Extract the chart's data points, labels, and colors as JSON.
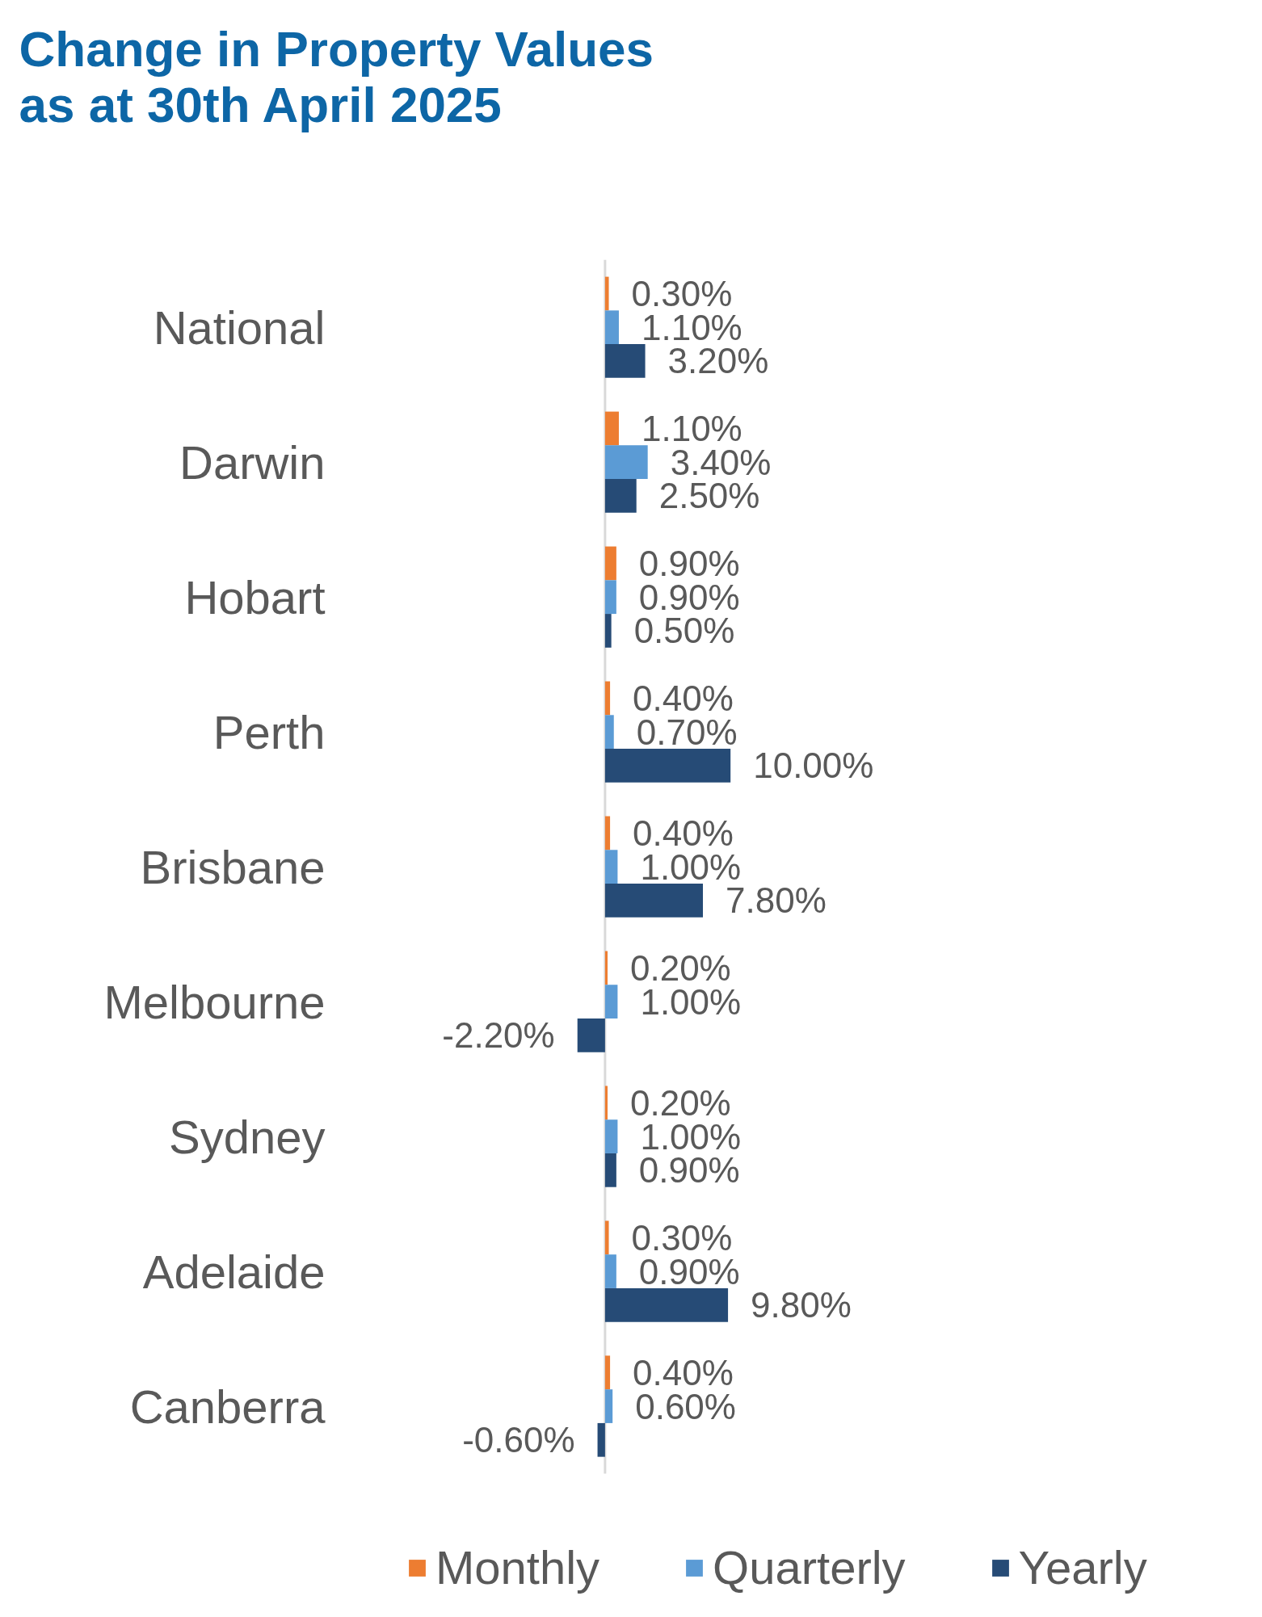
{
  "chart_data": {
    "type": "bar",
    "orientation": "horizontal",
    "title": "Change in Property Values\nas at 30th April 2025",
    "categories": [
      "National",
      "Darwin",
      "Hobart",
      "Perth",
      "Brisbane",
      "Melbourne",
      "Sydney",
      "Adelaide",
      "Canberra"
    ],
    "series": [
      {
        "name": "Monthly",
        "color": "#ed7d31",
        "values": [
          0.3,
          1.1,
          0.9,
          0.4,
          0.4,
          0.2,
          0.2,
          0.3,
          0.4
        ],
        "value_labels": [
          "0.30%",
          "1.10%",
          "0.90%",
          "0.40%",
          "0.40%",
          "0.20%",
          "0.20%",
          "0.30%",
          "0.40%"
        ]
      },
      {
        "name": "Quarterly",
        "color": "#5b9bd5",
        "values": [
          1.1,
          3.4,
          0.9,
          0.7,
          1.0,
          1.0,
          1.0,
          0.9,
          0.6
        ],
        "value_labels": [
          "1.10%",
          "3.40%",
          "0.90%",
          "0.70%",
          "1.00%",
          "1.00%",
          "1.00%",
          "0.90%",
          "0.60%"
        ]
      },
      {
        "name": "Yearly",
        "color": "#264b76",
        "values": [
          3.2,
          2.5,
          0.5,
          10.0,
          7.8,
          -2.2,
          0.9,
          9.8,
          -0.6
        ],
        "value_labels": [
          "3.20%",
          "2.50%",
          "0.50%",
          "10.00%",
          "7.80%",
          "-2.20%",
          "0.90%",
          "9.80%",
          "-0.60%"
        ]
      }
    ],
    "legend": "bottom",
    "tick_labels": "y"
  }
}
